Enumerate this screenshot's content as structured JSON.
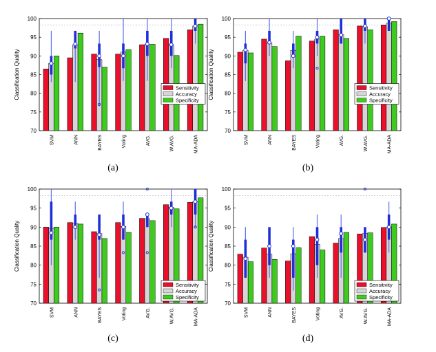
{
  "figure": {
    "series_colors": {
      "Sensitivity": "#e8102a",
      "Accuracy": "#d6d6d6",
      "Specificity": "#3fca1f"
    },
    "box_color": "#1f2fd8",
    "whisker_color": "#5a6ef0"
  },
  "chart_data": [
    {
      "panel_label": "(a)",
      "type": "bar",
      "ylabel": "Classification Quality",
      "ylim": [
        70,
        100
      ],
      "yticks": [
        70,
        75,
        80,
        85,
        90,
        95,
        100
      ],
      "categories": [
        "SVM",
        "ANN",
        "BAYES",
        "Voting",
        "AVG.",
        "W.AVG.",
        "MA-ADA"
      ],
      "legend": {
        "entries": [
          "Sensitivity",
          "Accuracy",
          "Specificity"
        ],
        "position": "middle-right"
      },
      "series": [
        {
          "name": "Sensitivity",
          "values": [
            86.5,
            89.5,
            90.5,
            90.5,
            93.0,
            94.7,
            97.0
          ]
        },
        {
          "name": "Accuracy",
          "values": [
            88.0,
            93.0,
            89.0,
            91.0,
            93.0,
            93.0,
            98.0
          ]
        },
        {
          "name": "Specificity",
          "values": [
            90.0,
            96.1,
            87.0,
            91.7,
            93.1,
            90.1,
            98.5
          ]
        }
      ],
      "boxes": [
        {
          "whisker": [
            83.0,
            96.7
          ],
          "box": [
            85.0,
            90.0
          ],
          "median": 88.0,
          "outliers": []
        },
        {
          "whisker": [
            83.0,
            96.7
          ],
          "box": [
            92.0,
            96.7
          ],
          "median": 93.2,
          "outliers": []
        },
        {
          "whisker": [
            76.5,
            96.7
          ],
          "box": [
            87.0,
            93.3
          ],
          "median": 90.0,
          "outliers": [
            77.0
          ]
        },
        {
          "whisker": [
            83.3,
            100.0
          ],
          "box": [
            86.7,
            93.3
          ],
          "median": 90.0,
          "outliers": []
        },
        {
          "whisker": [
            83.3,
            100.0
          ],
          "box": [
            90.0,
            96.7
          ],
          "median": 93.2,
          "outliers": []
        },
        {
          "whisker": [
            86.7,
            100.0
          ],
          "box": [
            90.0,
            96.7
          ],
          "median": 93.0,
          "outliers": []
        },
        {
          "whisker": [
            93.3,
            100.0
          ],
          "box": [
            96.7,
            100.0
          ],
          "median": 98.0,
          "outliers": []
        }
      ]
    },
    {
      "panel_label": "(b)",
      "type": "bar",
      "ylabel": "Classification Quality",
      "ylim": [
        70,
        100
      ],
      "yticks": [
        70,
        75,
        80,
        85,
        90,
        95,
        100
      ],
      "categories": [
        "SVM",
        "ANN",
        "BAYES",
        "Voting",
        "AVG.",
        "W.AVG.",
        "MA-ADA"
      ],
      "legend": {
        "entries": [
          "Sensitivity",
          "Accuracy",
          "Specificity"
        ],
        "position": "middle-right"
      },
      "series": [
        {
          "name": "Sensitivity",
          "values": [
            91.0,
            94.5,
            88.7,
            94.0,
            97.0,
            98.0,
            98.3
          ]
        },
        {
          "name": "Accuracy",
          "values": [
            91.5,
            93.5,
            91.5,
            94.5,
            95.7,
            97.8,
            98.8
          ]
        },
        {
          "name": "Specificity",
          "values": [
            90.8,
            92.5,
            95.3,
            95.3,
            94.7,
            97.0,
            99.2
          ]
        }
      ],
      "boxes": [
        {
          "whisker": [
            83.3,
            96.7
          ],
          "box": [
            88.0,
            93.3
          ],
          "median": 91.6,
          "outliers": []
        },
        {
          "whisker": [
            90.0,
            100.0
          ],
          "box": [
            93.3,
            96.7
          ],
          "median": 93.6,
          "outliers": []
        },
        {
          "whisker": [
            86.7,
            96.7
          ],
          "box": [
            90.0,
            93.3
          ],
          "median": 90.0,
          "outliers": []
        },
        {
          "whisker": [
            90.0,
            100.0
          ],
          "box": [
            93.3,
            96.7
          ],
          "median": 95.0,
          "outliers": [
            86.7
          ]
        },
        {
          "whisker": [
            93.3,
            100.0
          ],
          "box": [
            93.3,
            100.0
          ],
          "median": 95.6,
          "outliers": []
        },
        {
          "whisker": [
            93.3,
            100.0
          ],
          "box": [
            96.7,
            100.0
          ],
          "median": 98.0,
          "outliers": []
        },
        {
          "whisker": [
            96.7,
            100.0
          ],
          "box": [
            96.7,
            100.0
          ],
          "median": 100.0,
          "outliers": []
        }
      ]
    },
    {
      "panel_label": "(c)",
      "type": "bar",
      "ylabel": "Classification Quality",
      "ylim": [
        70,
        100
      ],
      "yticks": [
        70,
        75,
        80,
        85,
        90,
        95,
        100
      ],
      "categories": [
        "SVM",
        "ANN",
        "BAYES",
        "Voting",
        "AVG.",
        "W.AVG.",
        "MA-ADA"
      ],
      "legend": {
        "entries": [
          "Sensitivity",
          "Accuracy",
          "Specificity"
        ],
        "position": "lower-right"
      },
      "series": [
        {
          "name": "Sensitivity",
          "values": [
            90.0,
            91.2,
            88.8,
            91.2,
            92.3,
            95.9,
            96.5
          ]
        },
        {
          "name": "Accuracy",
          "values": [
            89.7,
            91.0,
            88.3,
            90.2,
            92.2,
            95.2,
            96.7
          ]
        },
        {
          "name": "Specificity",
          "values": [
            90.0,
            90.8,
            87.0,
            88.6,
            91.7,
            94.8,
            97.7
          ]
        }
      ],
      "boxes": [
        {
          "whisker": [
            80.0,
            100.0
          ],
          "box": [
            86.7,
            96.7
          ],
          "median": 88.5,
          "outliers": []
        },
        {
          "whisker": [
            86.7,
            96.7
          ],
          "box": [
            90.0,
            93.3
          ],
          "median": 90.0,
          "outliers": []
        },
        {
          "whisker": [
            76.7,
            93.3
          ],
          "box": [
            86.7,
            93.3
          ],
          "median": 88.0,
          "outliers": [
            73.5
          ]
        },
        {
          "whisker": [
            86.7,
            96.7
          ],
          "box": [
            86.7,
            93.3
          ],
          "median": 90.0,
          "outliers": [
            83.3
          ]
        },
        {
          "whisker": [
            90.0,
            93.3
          ],
          "box": [
            90.0,
            93.3
          ],
          "median": 93.3,
          "outliers": [
            83.3,
            100.0
          ]
        },
        {
          "whisker": [
            90.0,
            100.0
          ],
          "box": [
            93.3,
            96.7
          ],
          "median": 95.0,
          "outliers": []
        },
        {
          "whisker": [
            90.0,
            100.0
          ],
          "box": [
            93.3,
            100.0
          ],
          "median": 96.7,
          "outliers": [
            90.0
          ]
        }
      ]
    },
    {
      "panel_label": "(d)",
      "type": "bar",
      "ylabel": "Classification Quality",
      "ylim": [
        70,
        100
      ],
      "yticks": [
        70,
        75,
        80,
        85,
        90,
        95,
        100
      ],
      "categories": [
        "SVM",
        "ANN",
        "BAYES",
        "Voting",
        "AVG.",
        "W.AVG.",
        "MA-ADA"
      ],
      "legend": {
        "entries": [
          "Sensitivity",
          "Accuracy",
          "Specificity"
        ],
        "position": "lower-right"
      },
      "series": [
        {
          "name": "Sensitivity",
          "values": [
            82.9,
            84.5,
            81.1,
            87.5,
            85.8,
            88.2,
            89.9
          ]
        },
        {
          "name": "Accuracy",
          "values": [
            82.1,
            82.9,
            83.0,
            85.5,
            87.0,
            88.3,
            90.0
          ]
        },
        {
          "name": "Specificity",
          "values": [
            80.9,
            81.5,
            84.6,
            84.0,
            88.6,
            88.5,
            90.8
          ]
        }
      ],
      "boxes": [
        {
          "whisker": [
            76.7,
            90.0
          ],
          "box": [
            76.7,
            86.7
          ],
          "median": 81.7,
          "outliers": []
        },
        {
          "whisker": [
            76.7,
            90.0
          ],
          "box": [
            80.0,
            90.0
          ],
          "median": 85.0,
          "outliers": []
        },
        {
          "whisker": [
            73.3,
            90.0
          ],
          "box": [
            76.7,
            86.7
          ],
          "median": 85.0,
          "outliers": []
        },
        {
          "whisker": [
            76.7,
            93.3
          ],
          "box": [
            80.0,
            90.0
          ],
          "median": 86.7,
          "outliers": []
        },
        {
          "whisker": [
            76.7,
            93.3
          ],
          "box": [
            83.3,
            90.0
          ],
          "median": 88.3,
          "outliers": []
        },
        {
          "whisker": [
            83.3,
            90.0
          ],
          "box": [
            83.3,
            90.0
          ],
          "median": 86.7,
          "outliers": [
            100.0
          ]
        },
        {
          "whisker": [
            83.3,
            96.7
          ],
          "box": [
            86.7,
            93.3
          ],
          "median": 90.0,
          "outliers": []
        }
      ]
    }
  ]
}
